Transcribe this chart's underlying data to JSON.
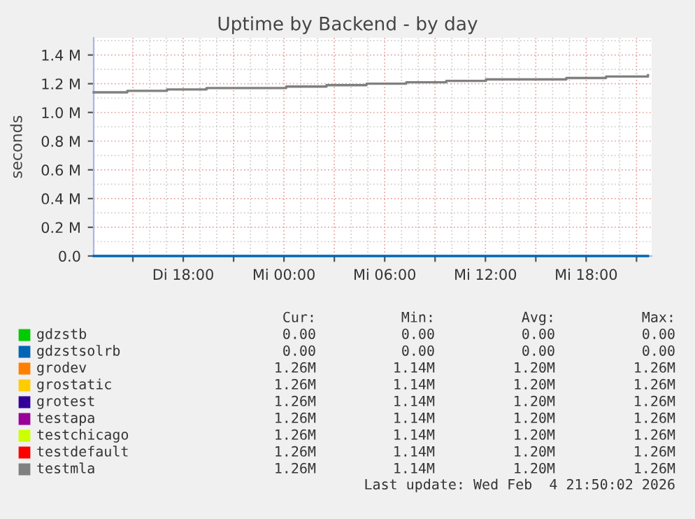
{
  "chart_data": {
    "type": "step",
    "title": "Uptime by Backend - by day",
    "ylabel": "seconds",
    "x": [
      "2026-02-03T12:40",
      "2026-02-03T14:40",
      "2026-02-03T17:02",
      "2026-02-03T19:23",
      "2026-02-03T21:47",
      "2026-02-04T00:08",
      "2026-02-04T02:32",
      "2026-02-04T04:55",
      "2026-02-04T07:17",
      "2026-02-04T09:40",
      "2026-02-04T12:02",
      "2026-02-04T14:25",
      "2026-02-04T16:49",
      "2026-02-04T19:11",
      "2026-02-04T21:41"
    ],
    "series": [
      {
        "name": "gdzstb",
        "color": "#00cc00",
        "values": [
          null,
          null,
          null,
          null,
          null,
          null,
          null,
          null,
          null,
          null,
          null,
          null,
          null,
          null,
          null
        ]
      },
      {
        "name": "gdzstsolrb",
        "color": "#0066b3",
        "values": [
          0,
          0,
          0,
          0,
          0,
          0,
          0,
          0,
          0,
          0,
          0,
          0,
          0,
          0,
          0
        ]
      },
      {
        "name": "grodev",
        "color": "#ff8000",
        "values": [
          null,
          null,
          null,
          null,
          null,
          null,
          null,
          null,
          null,
          null,
          null,
          null,
          null,
          null,
          null
        ]
      },
      {
        "name": "grostatic",
        "color": "#ffcc00",
        "values": [
          null,
          null,
          null,
          null,
          null,
          null,
          null,
          null,
          null,
          null,
          null,
          null,
          null,
          null,
          null
        ]
      },
      {
        "name": "grotest",
        "color": "#330099",
        "values": [
          null,
          null,
          null,
          null,
          null,
          null,
          null,
          null,
          null,
          null,
          null,
          null,
          null,
          null,
          null
        ]
      },
      {
        "name": "testapa",
        "color": "#990099",
        "values": [
          null,
          null,
          null,
          null,
          null,
          null,
          null,
          null,
          null,
          null,
          null,
          null,
          null,
          null,
          null
        ]
      },
      {
        "name": "testchicago",
        "color": "#ccff00",
        "values": [
          null,
          null,
          null,
          null,
          null,
          null,
          null,
          null,
          null,
          null,
          null,
          null,
          null,
          null,
          null
        ]
      },
      {
        "name": "testdefault",
        "color": "#ff0000",
        "values": [
          null,
          null,
          null,
          null,
          null,
          null,
          null,
          null,
          null,
          null,
          null,
          null,
          null,
          null,
          null
        ]
      },
      {
        "name": "testmla",
        "color": "#808080",
        "values": [
          1140000,
          1150000,
          1160000,
          1170000,
          1170000,
          1180000,
          1190000,
          1200000,
          1210000,
          1220000,
          1230000,
          1230000,
          1240000,
          1250000,
          1260000
        ]
      }
    ],
    "xlim": [
      "2026-02-03T12:40",
      "2026-02-04T21:54"
    ],
    "xticks": [
      {
        "value": "2026-02-03T15:00",
        "label": null
      },
      {
        "value": "2026-02-03T18:00",
        "label": "Di 18:00"
      },
      {
        "value": "2026-02-03T21:00",
        "label": null
      },
      {
        "value": "2026-02-04T00:00",
        "label": "Mi 00:00"
      },
      {
        "value": "2026-02-04T03:00",
        "label": null
      },
      {
        "value": "2026-02-04T06:00",
        "label": "Mi 06:00"
      },
      {
        "value": "2026-02-04T09:00",
        "label": null
      },
      {
        "value": "2026-02-04T12:00",
        "label": "Mi 12:00"
      },
      {
        "value": "2026-02-04T15:00",
        "label": null
      },
      {
        "value": "2026-02-04T18:00",
        "label": "Mi 18:00"
      },
      {
        "value": "2026-02-04T21:00",
        "label": null
      }
    ],
    "ylim": [
      0,
      1520000
    ],
    "yticks": [
      {
        "value": 0,
        "label": "0.0"
      },
      {
        "value": 200000,
        "label": "0.2 M"
      },
      {
        "value": 400000,
        "label": "0.4 M"
      },
      {
        "value": 600000,
        "label": "0.6 M"
      },
      {
        "value": 800000,
        "label": "0.8 M"
      },
      {
        "value": 1000000,
        "label": "1.0 M"
      },
      {
        "value": 1200000,
        "label": "1.2 M"
      },
      {
        "value": 1400000,
        "label": "1.4 M"
      }
    ],
    "grid": true,
    "legend": "bottom",
    "marker": "none",
    "line_style": "solid",
    "annotations": [
      "Cur:",
      "Min:",
      "Avg:",
      "Max:",
      "0.00",
      "0.00",
      "0.00",
      "0.00",
      "0.00",
      "0.00",
      "0.00",
      "0.00",
      "1.26M",
      "1.14M",
      "1.20M",
      "1.26M",
      "1.26M",
      "1.14M",
      "1.20M",
      "1.26M",
      "1.26M",
      "1.14M",
      "1.20M",
      "1.26M",
      "1.26M",
      "1.14M",
      "1.20M",
      "1.26M",
      "1.26M",
      "1.14M",
      "1.20M",
      "1.26M",
      "1.26M",
      "1.14M",
      "1.20M",
      "1.26M",
      "1.26M",
      "1.14M",
      "1.20M",
      "1.26M",
      "Last update: Wed Feb  4 21:50:02 2026"
    ]
  }
}
